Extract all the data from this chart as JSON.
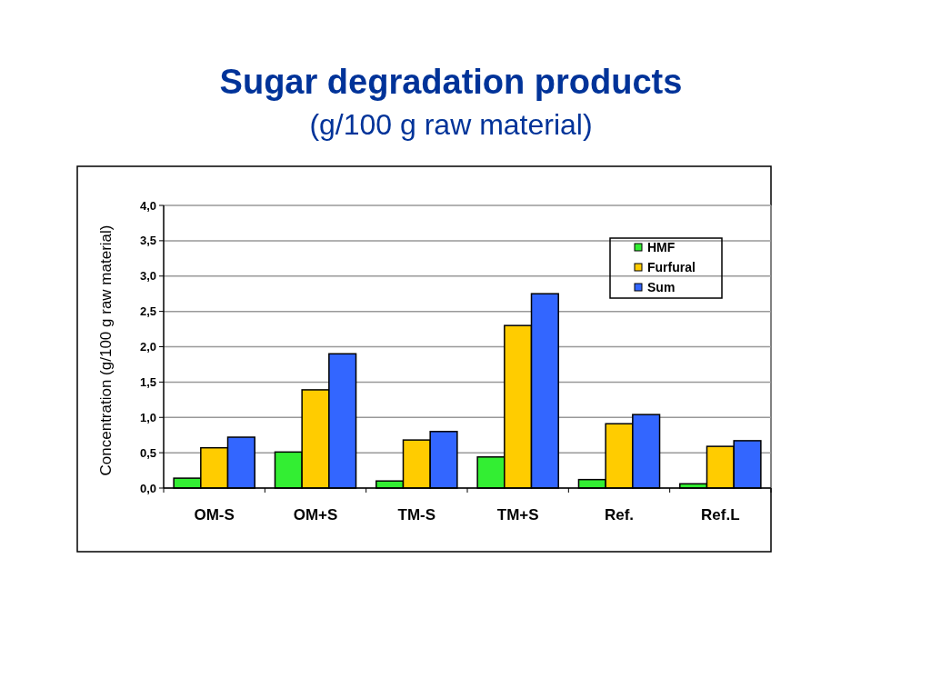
{
  "chart_data": {
    "type": "bar",
    "title": "Sugar degradation products",
    "subtitle": "(g/100 g raw material)",
    "ylabel": "Concentration (g/100 g raw material)",
    "categories": [
      "OM-S",
      "OM+S",
      "TM-S",
      "TM+S",
      "Ref.",
      "Ref.L"
    ],
    "series": [
      {
        "name": "HMF",
        "color": "#33ee33",
        "values": [
          0.14,
          0.51,
          0.1,
          0.44,
          0.12,
          0.06
        ]
      },
      {
        "name": "Furfural",
        "color": "#ffcc00",
        "values": [
          0.57,
          1.39,
          0.68,
          2.3,
          0.91,
          0.59
        ]
      },
      {
        "name": "Sum",
        "color": "#3366ff",
        "values": [
          0.72,
          1.9,
          0.8,
          2.75,
          1.04,
          0.67
        ]
      }
    ],
    "ylim": [
      0,
      4
    ],
    "yticks": [
      {
        "value": 0,
        "label": "0,0"
      },
      {
        "value": 0.5,
        "label": "0,5"
      },
      {
        "value": 1,
        "label": "1,0"
      },
      {
        "value": 1.5,
        "label": "1,5"
      },
      {
        "value": 2,
        "label": "2,0"
      },
      {
        "value": 2.5,
        "label": "2,5"
      },
      {
        "value": 3,
        "label": "3,0"
      },
      {
        "value": 3.5,
        "label": "3,5"
      },
      {
        "value": 4,
        "label": "4,0"
      }
    ],
    "grid": "y",
    "legend": "top right"
  }
}
